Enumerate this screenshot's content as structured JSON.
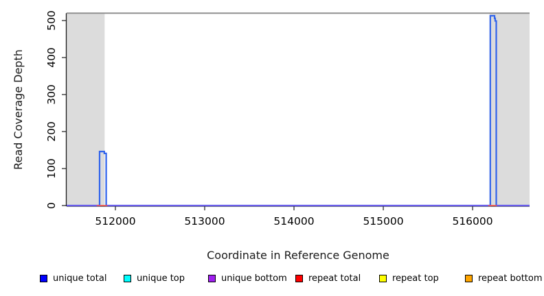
{
  "chart_data": {
    "type": "line",
    "title": "",
    "xlabel": "Coordinate in Reference Genome",
    "ylabel": "Read Coverage Depth",
    "xlim": [
      511454,
      516638
    ],
    "ylim": [
      0,
      530
    ],
    "x_ticks": [
      512000,
      513000,
      514000,
      515000,
      516000
    ],
    "y_ticks": [
      0,
      100,
      200,
      300,
      400,
      500
    ],
    "grid": false,
    "axis_color": "#1a1a1a",
    "max_coverage_line": {
      "y": 520,
      "color": "#8f8f8f",
      "width": 2
    },
    "shaded_regions": {
      "color": "#dcdcdc",
      "y_bottom": 0,
      "y_top": 520,
      "ranges": [
        [
          511454,
          511880
        ],
        [
          516190,
          516638
        ]
      ]
    },
    "series": [
      {
        "name": "unique top",
        "color": "#00e5ee",
        "width": 1.2,
        "segments": [
          [
            [
              511454,
              0
            ],
            [
              516638,
              0
            ]
          ]
        ]
      },
      {
        "name": "repeat top",
        "color": "#ffe800",
        "width": 1.2,
        "segments": [
          [
            [
              511454,
              0
            ],
            [
              516638,
              0
            ]
          ]
        ]
      },
      {
        "name": "repeat bottom",
        "color": "#ffa500",
        "width": 1.2,
        "segments": [
          [
            [
              511454,
              0
            ],
            [
              516638,
              0
            ]
          ]
        ]
      },
      {
        "name": "unique total",
        "color": "#3063ec",
        "width": 2.2,
        "segments": [
          [
            [
              511454,
              0
            ],
            [
              511823,
              0
            ],
            [
              511823,
              146
            ],
            [
              511876,
              146
            ],
            [
              511876,
              141
            ],
            [
              511897,
              141
            ],
            [
              511897,
              0
            ],
            [
              516198,
              0
            ],
            [
              516198,
              513
            ],
            [
              516246,
              513
            ],
            [
              516246,
              506
            ],
            [
              516253,
              506
            ],
            [
              516253,
              499
            ],
            [
              516265,
              499
            ],
            [
              516265,
              0
            ],
            [
              516638,
              0
            ]
          ]
        ]
      },
      {
        "name": "unique bottom",
        "color": "#8a55e8",
        "width": 1.3,
        "segments": [
          [
            [
              511454,
              0
            ],
            [
              516638,
              0
            ]
          ]
        ]
      },
      {
        "name": "repeat total",
        "color": "#ff4b4b",
        "width": 1.5,
        "segments": [
          [
            [
              511790,
              0
            ],
            [
              511910,
              0
            ]
          ],
          [
            [
              516175,
              0
            ],
            [
              516271,
              0
            ]
          ]
        ]
      }
    ],
    "legend": {
      "position": "bottom",
      "items": [
        {
          "label": "unique total",
          "color": "#0000ff"
        },
        {
          "label": "unique top",
          "color": "#00ffff"
        },
        {
          "label": "unique bottom",
          "color": "#a020f0"
        },
        {
          "label": "repeat total",
          "color": "#ff0000"
        },
        {
          "label": "repeat top",
          "color": "#ffff00"
        },
        {
          "label": "repeat bottom",
          "color": "#ffa500"
        }
      ]
    }
  }
}
